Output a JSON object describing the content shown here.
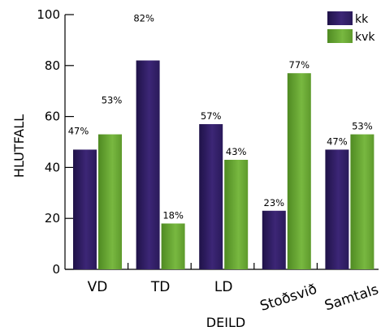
{
  "chart_data": {
    "type": "bar",
    "xlabel": "DEILD",
    "ylabel": "HLUTFALL",
    "ylim": [
      0,
      100
    ],
    "yticks": [
      0,
      20,
      40,
      60,
      80,
      100
    ],
    "grid": false,
    "legend_position": "top-right",
    "categories": [
      "VD",
      "TD",
      "LD",
      "Stoðsvið",
      "Samtals"
    ],
    "series": [
      {
        "name": "kk",
        "values": [
          47,
          82,
          57,
          23,
          47
        ],
        "labels": [
          "47%",
          "82%",
          "57%",
          "23%",
          "47%"
        ],
        "color": "#3b2470"
      },
      {
        "name": "kvk",
        "values": [
          53,
          18,
          43,
          77,
          53
        ],
        "labels": [
          "53%",
          "18%",
          "43%",
          "77%",
          "53%"
        ],
        "color": "#6aa538"
      }
    ]
  }
}
